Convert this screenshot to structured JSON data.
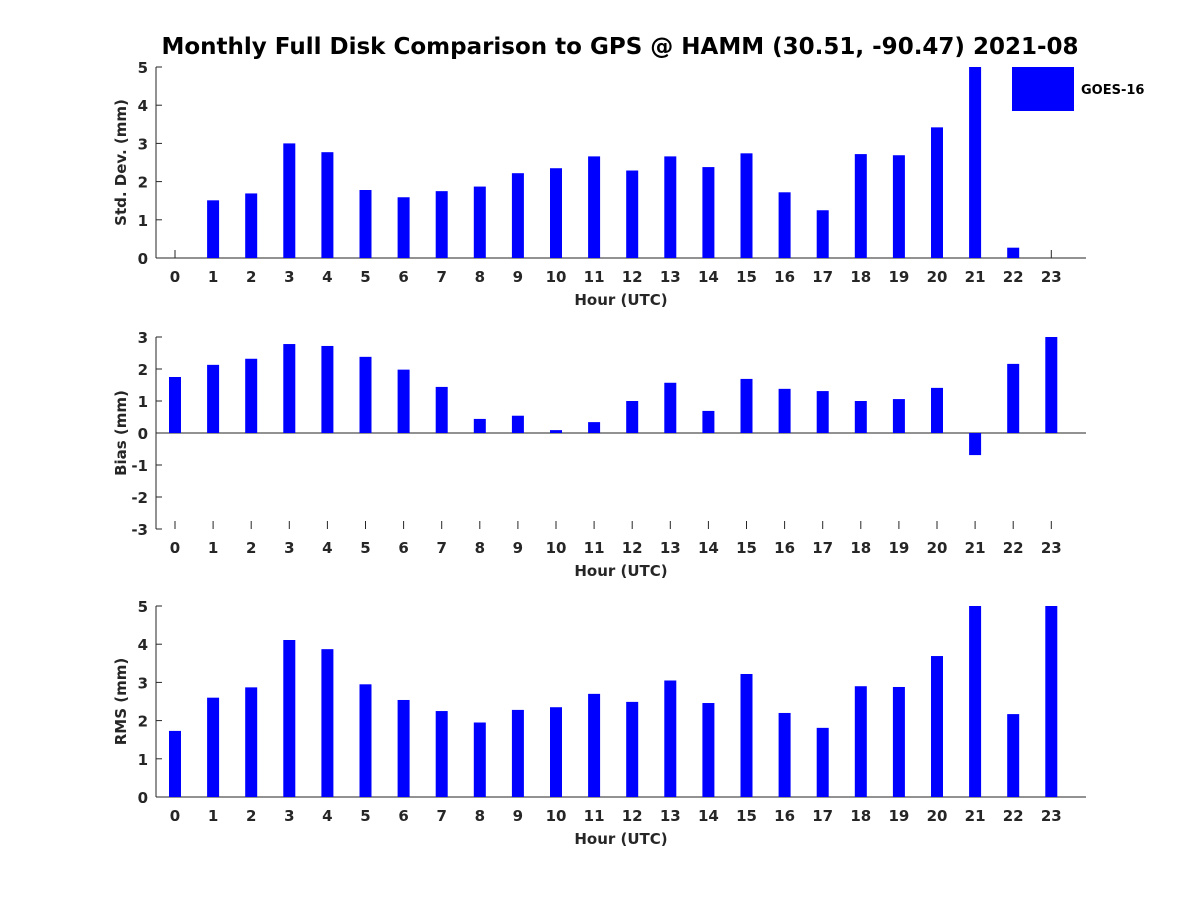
{
  "figure": {
    "title": "Monthly Full Disk Comparison to GPS @ HAMM (30.51, -90.47) 2021-08"
  },
  "colors": {
    "bar": "#0000ff",
    "axis": "#262626"
  },
  "legend": {
    "label": "GOES-16",
    "position": "top-right",
    "color": "#0000ff"
  },
  "chart_data": [
    {
      "type": "bar",
      "xlabel": "Hour (UTC)",
      "ylabel": "Std. Dev. (mm)",
      "ylim": [
        0,
        5
      ],
      "yticks": [
        0,
        1,
        2,
        3,
        4,
        5
      ],
      "categories": [
        "0",
        "1",
        "2",
        "3",
        "4",
        "5",
        "6",
        "7",
        "8",
        "9",
        "10",
        "11",
        "12",
        "13",
        "14",
        "15",
        "16",
        "17",
        "18",
        "19",
        "20",
        "21",
        "22",
        "23"
      ],
      "series": [
        {
          "name": "GOES-16",
          "values": [
            null,
            1.51,
            1.69,
            3.0,
            2.77,
            1.78,
            1.59,
            1.75,
            1.87,
            2.22,
            2.35,
            2.66,
            2.29,
            2.66,
            2.38,
            2.74,
            1.72,
            1.25,
            2.72,
            2.69,
            3.42,
            5.0,
            0.27,
            null
          ]
        }
      ],
      "legend": true
    },
    {
      "type": "bar",
      "xlabel": "Hour (UTC)",
      "ylabel": "Bias (mm)",
      "ylim": [
        -3,
        3
      ],
      "yticks": [
        -3,
        -2,
        -1,
        0,
        1,
        2,
        3
      ],
      "categories": [
        "0",
        "1",
        "2",
        "3",
        "4",
        "5",
        "6",
        "7",
        "8",
        "9",
        "10",
        "11",
        "12",
        "13",
        "14",
        "15",
        "16",
        "17",
        "18",
        "19",
        "20",
        "21",
        "22",
        "23"
      ],
      "series": [
        {
          "name": "GOES-16",
          "values": [
            1.75,
            2.13,
            2.32,
            2.78,
            2.72,
            2.38,
            1.98,
            1.44,
            0.44,
            0.54,
            0.09,
            0.34,
            1.0,
            1.57,
            0.69,
            1.69,
            1.38,
            1.31,
            1.0,
            1.06,
            1.41,
            -0.69,
            2.16,
            3.0
          ]
        }
      ],
      "legend": false
    },
    {
      "type": "bar",
      "xlabel": "Hour (UTC)",
      "ylabel": "RMS (mm)",
      "ylim": [
        0,
        5
      ],
      "yticks": [
        0,
        1,
        2,
        3,
        4,
        5
      ],
      "categories": [
        "0",
        "1",
        "2",
        "3",
        "4",
        "5",
        "6",
        "7",
        "8",
        "9",
        "10",
        "11",
        "12",
        "13",
        "14",
        "15",
        "16",
        "17",
        "18",
        "19",
        "20",
        "21",
        "22",
        "23"
      ],
      "series": [
        {
          "name": "GOES-16",
          "values": [
            1.73,
            2.6,
            2.87,
            4.11,
            3.87,
            2.95,
            2.54,
            2.25,
            1.95,
            2.28,
            2.35,
            2.7,
            2.49,
            3.05,
            2.46,
            3.22,
            2.2,
            1.81,
            2.9,
            2.88,
            3.69,
            5.0,
            2.17,
            5.0
          ]
        }
      ],
      "legend": false
    }
  ]
}
